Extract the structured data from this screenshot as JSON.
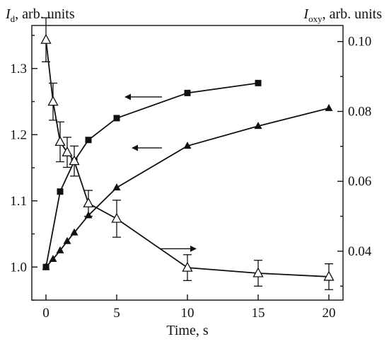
{
  "chart_data": {
    "type": "line",
    "xlabel": "Time, s",
    "y_left_label": {
      "main": "I",
      "sub": "d",
      "rest": ", arb. units"
    },
    "y_right_label": {
      "main": "I",
      "sub": "oxy",
      "rest": ", arb. units"
    },
    "xlim": [
      -1,
      21
    ],
    "ylim_left": [
      0.95,
      1.365
    ],
    "ylim_right": [
      0.026,
      0.1046
    ],
    "x_ticks": [
      0,
      5,
      10,
      15,
      20
    ],
    "x_tick_labels": [
      "0",
      "5",
      "10",
      "15",
      "20"
    ],
    "y_left_ticks": [
      1.0,
      1.1,
      1.2,
      1.3
    ],
    "y_left_tick_labels": [
      "1.0",
      "1.1",
      "1.2",
      "1.3"
    ],
    "y_right_ticks": [
      0.04,
      0.06,
      0.08,
      0.1
    ],
    "y_right_tick_labels": [
      "0.04",
      "0.06",
      "0.08",
      "0.10"
    ],
    "grid": false,
    "legend": "none",
    "series": [
      {
        "axis": "left",
        "marker": "filled-square",
        "x": [
          0,
          1,
          2,
          3,
          5,
          10,
          15
        ],
        "y": [
          1.0,
          1.114,
          1.16,
          1.192,
          1.225,
          1.263,
          1.278
        ]
      },
      {
        "axis": "left",
        "marker": "filled-triangle",
        "x": [
          0,
          0.5,
          1,
          1.5,
          2,
          3,
          5,
          10,
          15,
          20
        ],
        "y": [
          1.0,
          1.012,
          1.025,
          1.039,
          1.052,
          1.078,
          1.12,
          1.183,
          1.213,
          1.24
        ]
      },
      {
        "axis": "right",
        "marker": "open-triangle",
        "x": [
          0,
          0.5,
          1,
          1.5,
          2,
          3,
          5,
          10,
          15,
          20
        ],
        "y": [
          0.1005,
          0.0828,
          0.0713,
          0.0683,
          0.0658,
          0.0537,
          0.0493,
          0.0353,
          0.0337,
          0.0327
        ],
        "error": [
          0.0063,
          0.0053,
          0.0057,
          0.0043,
          0.0043,
          0.0037,
          0.0053,
          0.0037,
          0.0037,
          0.0037
        ]
      }
    ],
    "annotations": [
      {
        "type": "arrow",
        "direction": "left",
        "axis": "left",
        "x_start": 8.2,
        "x_end": 5.6,
        "y": 1.257,
        "points_to": "filled-square"
      },
      {
        "type": "arrow",
        "direction": "left",
        "axis": "left",
        "x_start": 8.2,
        "x_end": 6.1,
        "y": 1.18,
        "points_to": "filled-triangle"
      },
      {
        "type": "arrow",
        "direction": "right",
        "axis": "right",
        "x_start": 8.1,
        "x_end": 10.6,
        "y": 0.0407,
        "points_to": "open-triangle"
      }
    ]
  }
}
